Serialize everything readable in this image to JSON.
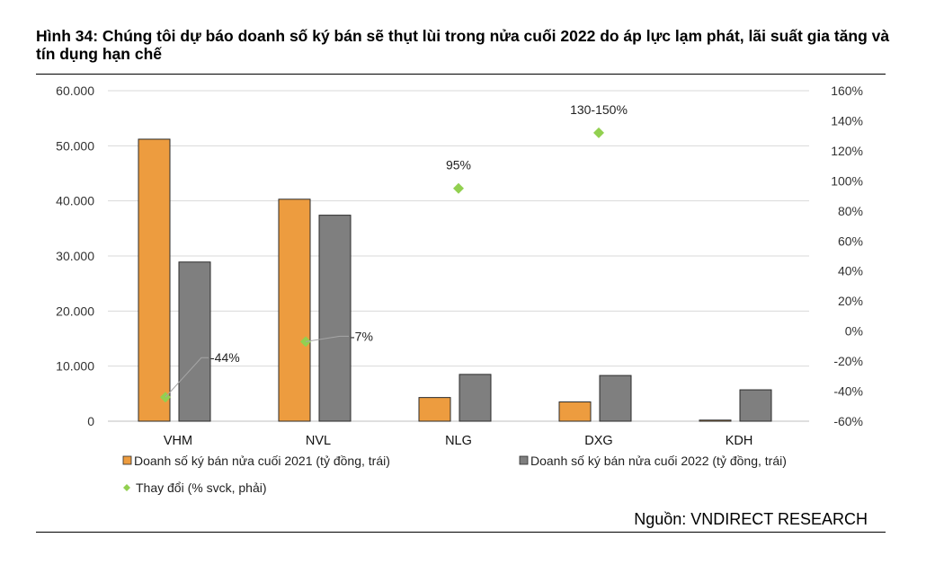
{
  "header": {
    "title": "Hình 34: Chúng tôi dự báo doanh số ký bán sẽ thụt lùi trong nửa cuối 2022 do áp lực lạm phát, lãi suất gia tăng và tín dụng hạn chế"
  },
  "footer": {
    "source": "Nguồn: VNDIRECT RESEARCH"
  },
  "chart_data": {
    "type": "bar",
    "title": "Hình 34: Chúng tôi dự báo doanh số ký bán sẽ thụt lùi trong nửa cuối 2022 do áp lực lạm phát, lãi suất gia tăng và tín dụng hạn chế",
    "categories": [
      "VHM",
      "NVL",
      "NLG",
      "DXG",
      "KDH"
    ],
    "series": [
      {
        "name": "Doanh số ký bán nửa cuối 2021 (tỷ đồng, trái)",
        "type": "bar",
        "axis": "left",
        "color": "#ED9C3F",
        "values": [
          51200,
          40300,
          4300,
          3500,
          200
        ]
      },
      {
        "name": "Doanh số ký bán nửa cuối 2022 (tỷ đồng, trái)",
        "type": "bar",
        "axis": "left",
        "color": "#7F7F7F",
        "values": [
          28900,
          37400,
          8500,
          8300,
          5700
        ]
      },
      {
        "name": "Thay đổi (% svck, phải)",
        "type": "scatter",
        "axis": "right",
        "color": "#92D050",
        "values": [
          -44,
          -7,
          95,
          132,
          null
        ]
      }
    ],
    "point_labels": [
      "-44%",
      "-7%",
      "95%",
      "130-150%",
      ""
    ],
    "y_left": {
      "min": 0,
      "max": 60000,
      "ticks": [
        "0",
        "10.000",
        "20.000",
        "30.000",
        "40.000",
        "50.000",
        "60.000"
      ]
    },
    "y_right": {
      "min": -60,
      "max": 160,
      "ticks": [
        "-60%",
        "-40%",
        "-20%",
        "0%",
        "20%",
        "40%",
        "60%",
        "80%",
        "100%",
        "120%",
        "140%",
        "160%"
      ]
    },
    "grid": true,
    "legend_position": "bottom"
  }
}
